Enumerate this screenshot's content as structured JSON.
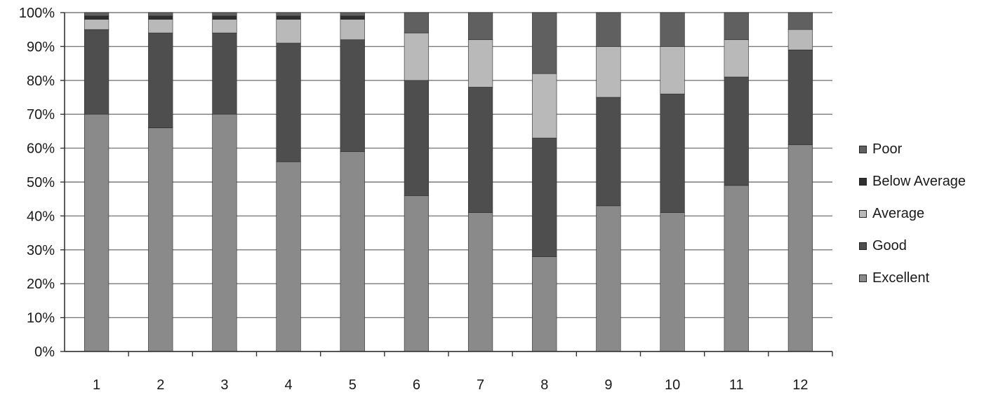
{
  "chart_data": {
    "type": "bar",
    "stacked": true,
    "percent": true,
    "categories": [
      "1",
      "2",
      "3",
      "4",
      "5",
      "6",
      "7",
      "8",
      "9",
      "10",
      "11",
      "12"
    ],
    "y_ticks": [
      "0%",
      "10%",
      "20%",
      "30%",
      "40%",
      "50%",
      "60%",
      "70%",
      "80%",
      "90%",
      "100%"
    ],
    "ylim": [
      0,
      100
    ],
    "grid": true,
    "legend_position": "right",
    "series": [
      {
        "name": "Excellent",
        "color": "#8a8a8a",
        "values": [
          70,
          66,
          70,
          56,
          59,
          46,
          41,
          28,
          43,
          41,
          49,
          61
        ]
      },
      {
        "name": "Good",
        "color": "#4e4e4e",
        "values": [
          25,
          28,
          24,
          35,
          33,
          34,
          37,
          35,
          32,
          35,
          32,
          28
        ]
      },
      {
        "name": "Average",
        "color": "#b9b9b9",
        "values": [
          3,
          4,
          4,
          7,
          6,
          14,
          14,
          19,
          15,
          14,
          11,
          6
        ]
      },
      {
        "name": "Below Average",
        "color": "#2f2f2f",
        "values": [
          1,
          1,
          1,
          1,
          1,
          0,
          0,
          0,
          0,
          0,
          0,
          0
        ]
      },
      {
        "name": "Poor",
        "color": "#606060",
        "values": [
          1,
          1,
          1,
          1,
          1,
          6,
          8,
          18,
          10,
          10,
          8,
          5
        ]
      }
    ]
  }
}
